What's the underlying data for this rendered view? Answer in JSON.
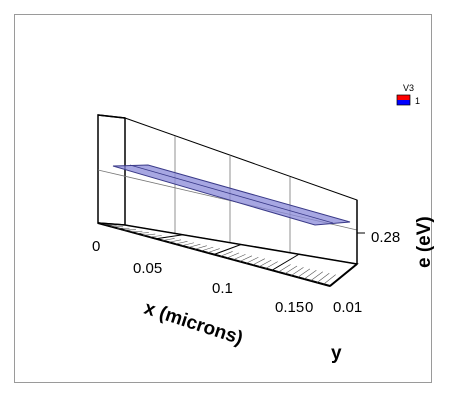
{
  "chart_data": {
    "type": "surface-3d",
    "title": "",
    "x_axis": {
      "label": "x (microns)",
      "ticks": [
        0,
        0.05,
        0.1,
        0.15
      ],
      "tick_labels": [
        "0",
        "0.05",
        "0.1",
        "0.15"
      ],
      "range": [
        0,
        0.175
      ]
    },
    "y_axis": {
      "label": "y",
      "ticks": [
        0,
        0.01
      ],
      "tick_labels": [
        "0",
        "0.01"
      ],
      "range": [
        0,
        0.01
      ]
    },
    "z_axis": {
      "label": "e (eV)",
      "ticks": [
        0.28
      ],
      "tick_labels": [
        "0.28"
      ]
    },
    "legend": {
      "title": "V3",
      "position": "top-right",
      "entries": [
        {
          "label": "1",
          "colors": [
            "#ff0000",
            "#0000ff"
          ]
        }
      ]
    },
    "series": [
      {
        "value": 0.28,
        "x_range": [
          0,
          0.175
        ],
        "y_range": [
          0,
          0.01
        ],
        "color": "#7a7ad0"
      }
    ]
  }
}
